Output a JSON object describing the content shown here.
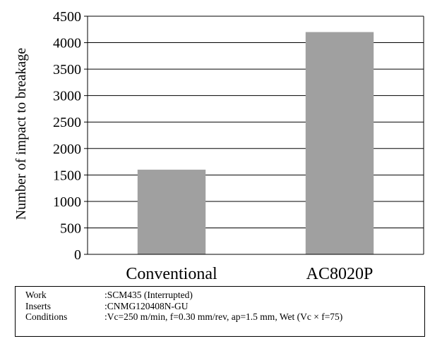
{
  "chart_data": {
    "type": "bar",
    "categories": [
      "Conventional",
      "AC8020P"
    ],
    "values": [
      1600,
      4200
    ],
    "ylabel": "Number of impact to breakage",
    "xlabel": "",
    "ylim": [
      0,
      4500
    ],
    "yticks": [
      0,
      500,
      1000,
      1500,
      2000,
      2500,
      3000,
      3500,
      4000,
      4500
    ],
    "grid": "horizontal",
    "bar_color": "#a0a0a0"
  },
  "notes": [
    {
      "label": "Work",
      "value": ":SCM435 (Interrupted)"
    },
    {
      "label": "Inserts",
      "value": ":CNMG120408N-GU"
    },
    {
      "label": "Conditions",
      "value": ":Vc=250 m/min, f=0.30 mm/rev, ap=1.5 mm, Wet (Vc × f=75)"
    }
  ]
}
